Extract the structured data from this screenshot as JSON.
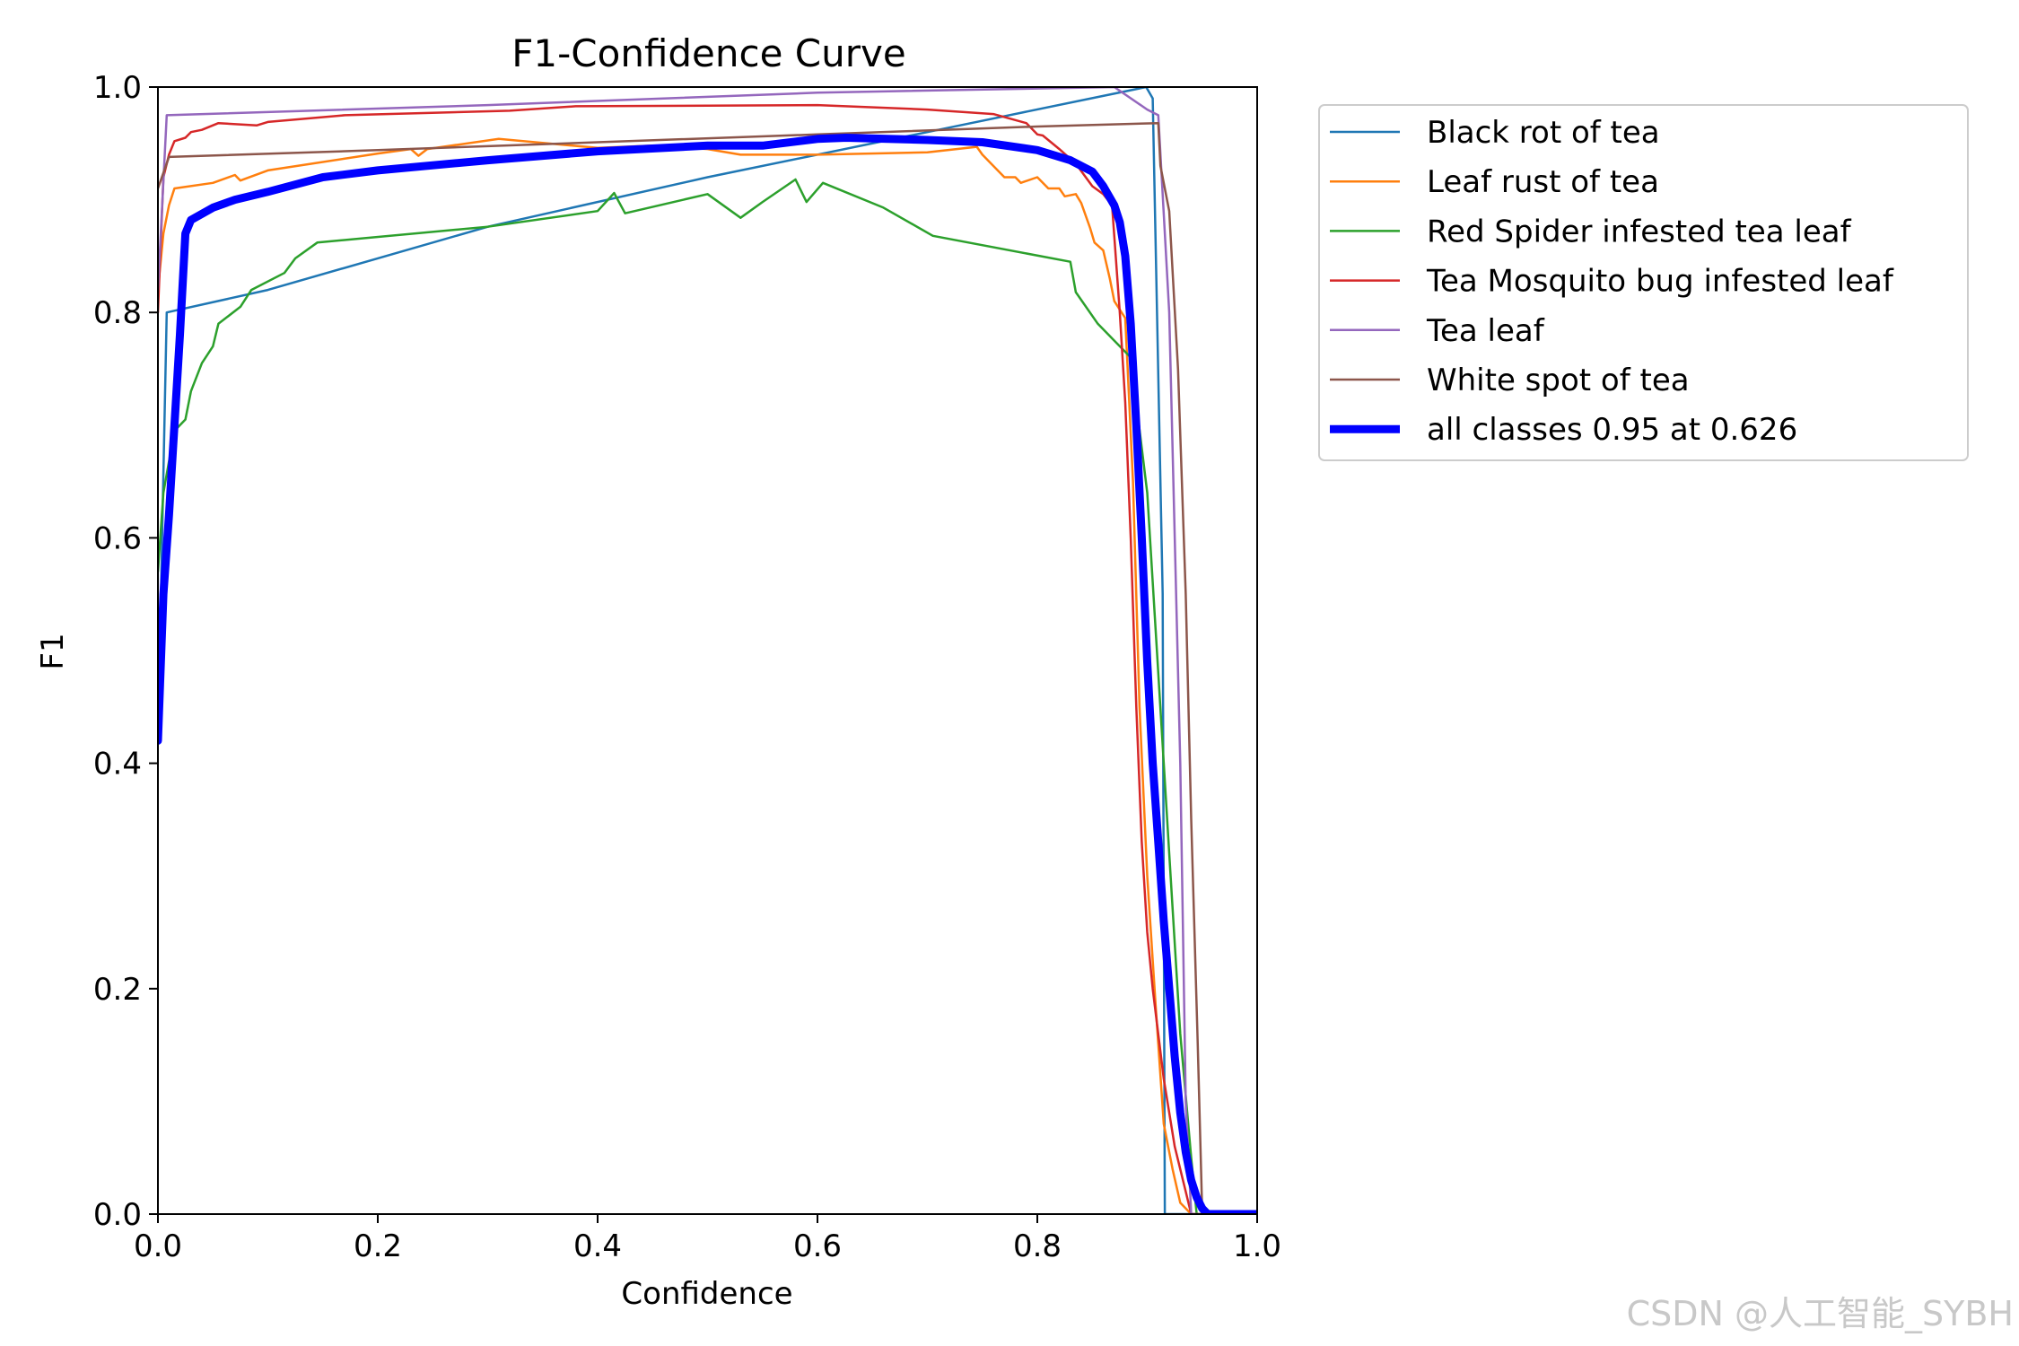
{
  "chart_data": {
    "type": "line",
    "title": "F1-Confidence Curve",
    "xlabel": "Confidence",
    "ylabel": "F1",
    "xlim": [
      0,
      1
    ],
    "ylim": [
      0,
      1
    ],
    "xticks": [
      "0.0",
      "0.2",
      "0.4",
      "0.6",
      "0.8",
      "1.0"
    ],
    "yticks": [
      "0.0",
      "0.2",
      "0.4",
      "0.6",
      "0.8",
      "1.0"
    ],
    "grid": false,
    "legend_position": "outside-right",
    "series": [
      {
        "name": "Black rot of tea",
        "color": "#1f77b4",
        "width": "thin",
        "points": [
          [
            0,
            0.42
          ],
          [
            0.008,
            0.8
          ],
          [
            0.1,
            0.82
          ],
          [
            0.3,
            0.876
          ],
          [
            0.5,
            0.92
          ],
          [
            0.7,
            0.96
          ],
          [
            0.899,
            1.0
          ],
          [
            0.905,
            0.99
          ],
          [
            0.914,
            0.55
          ],
          [
            0.916,
            0.0
          ],
          [
            1.0,
            0.0
          ]
        ]
      },
      {
        "name": "Leaf rust of tea",
        "color": "#ff7f0e",
        "width": "thin",
        "points": [
          [
            0,
            0.82
          ],
          [
            0.005,
            0.87
          ],
          [
            0.01,
            0.895
          ],
          [
            0.015,
            0.91
          ],
          [
            0.05,
            0.915
          ],
          [
            0.07,
            0.922
          ],
          [
            0.075,
            0.917
          ],
          [
            0.1,
            0.926
          ],
          [
            0.2,
            0.941
          ],
          [
            0.23,
            0.945
          ],
          [
            0.237,
            0.939
          ],
          [
            0.245,
            0.945
          ],
          [
            0.31,
            0.954
          ],
          [
            0.4,
            0.946
          ],
          [
            0.45,
            0.948
          ],
          [
            0.5,
            0.945
          ],
          [
            0.53,
            0.94
          ],
          [
            0.6,
            0.94
          ],
          [
            0.7,
            0.942
          ],
          [
            0.745,
            0.947
          ],
          [
            0.75,
            0.94
          ],
          [
            0.77,
            0.92
          ],
          [
            0.78,
            0.92
          ],
          [
            0.785,
            0.915
          ],
          [
            0.8,
            0.92
          ],
          [
            0.81,
            0.91
          ],
          [
            0.82,
            0.91
          ],
          [
            0.825,
            0.903
          ],
          [
            0.835,
            0.905
          ],
          [
            0.84,
            0.897
          ],
          [
            0.848,
            0.875
          ],
          [
            0.852,
            0.862
          ],
          [
            0.86,
            0.855
          ],
          [
            0.866,
            0.83
          ],
          [
            0.87,
            0.81
          ],
          [
            0.88,
            0.795
          ],
          [
            0.887,
            0.65
          ],
          [
            0.893,
            0.45
          ],
          [
            0.9,
            0.3
          ],
          [
            0.908,
            0.18
          ],
          [
            0.915,
            0.08
          ],
          [
            0.923,
            0.04
          ],
          [
            0.93,
            0.01
          ],
          [
            0.94,
            0.0
          ],
          [
            1.0,
            0.0
          ]
        ]
      },
      {
        "name": "Red Spider infested tea leaf",
        "color": "#2ca02c",
        "width": "thin",
        "points": [
          [
            0,
            0.57
          ],
          [
            0.005,
            0.64
          ],
          [
            0.015,
            0.695
          ],
          [
            0.025,
            0.705
          ],
          [
            0.03,
            0.73
          ],
          [
            0.04,
            0.755
          ],
          [
            0.05,
            0.77
          ],
          [
            0.055,
            0.79
          ],
          [
            0.075,
            0.805
          ],
          [
            0.085,
            0.82
          ],
          [
            0.115,
            0.835
          ],
          [
            0.125,
            0.848
          ],
          [
            0.145,
            0.862
          ],
          [
            0.3,
            0.876
          ],
          [
            0.4,
            0.89
          ],
          [
            0.415,
            0.906
          ],
          [
            0.425,
            0.888
          ],
          [
            0.5,
            0.905
          ],
          [
            0.53,
            0.884
          ],
          [
            0.55,
            0.898
          ],
          [
            0.58,
            0.918
          ],
          [
            0.59,
            0.898
          ],
          [
            0.605,
            0.915
          ],
          [
            0.66,
            0.893
          ],
          [
            0.705,
            0.868
          ],
          [
            0.83,
            0.845
          ],
          [
            0.835,
            0.818
          ],
          [
            0.855,
            0.79
          ],
          [
            0.885,
            0.76
          ],
          [
            0.9,
            0.64
          ],
          [
            0.91,
            0.48
          ],
          [
            0.92,
            0.32
          ],
          [
            0.93,
            0.16
          ],
          [
            0.94,
            0.05
          ],
          [
            0.945,
            0.0
          ],
          [
            1.0,
            0.0
          ]
        ]
      },
      {
        "name": "Tea Mosquito bug infested leaf",
        "color": "#d62728",
        "width": "thin",
        "points": [
          [
            0,
            0.8
          ],
          [
            0.005,
            0.92
          ],
          [
            0.01,
            0.94
          ],
          [
            0.015,
            0.952
          ],
          [
            0.025,
            0.955
          ],
          [
            0.03,
            0.96
          ],
          [
            0.04,
            0.962
          ],
          [
            0.055,
            0.968
          ],
          [
            0.09,
            0.966
          ],
          [
            0.1,
            0.969
          ],
          [
            0.17,
            0.975
          ],
          [
            0.32,
            0.979
          ],
          [
            0.38,
            0.983
          ],
          [
            0.6,
            0.984
          ],
          [
            0.7,
            0.98
          ],
          [
            0.76,
            0.976
          ],
          [
            0.79,
            0.968
          ],
          [
            0.8,
            0.958
          ],
          [
            0.805,
            0.957
          ],
          [
            0.82,
            0.945
          ],
          [
            0.835,
            0.932
          ],
          [
            0.85,
            0.912
          ],
          [
            0.86,
            0.905
          ],
          [
            0.868,
            0.895
          ],
          [
            0.875,
            0.8
          ],
          [
            0.88,
            0.72
          ],
          [
            0.885,
            0.6
          ],
          [
            0.89,
            0.45
          ],
          [
            0.895,
            0.33
          ],
          [
            0.9,
            0.25
          ],
          [
            0.905,
            0.2
          ],
          [
            0.915,
            0.12
          ],
          [
            0.925,
            0.06
          ],
          [
            0.935,
            0.02
          ],
          [
            0.94,
            0.0
          ],
          [
            1.0,
            0.0
          ]
        ]
      },
      {
        "name": "Tea leaf",
        "color": "#9467bd",
        "width": "thin",
        "points": [
          [
            0,
            0.82
          ],
          [
            0.008,
            0.975
          ],
          [
            0.3,
            0.984
          ],
          [
            0.6,
            0.995
          ],
          [
            0.87,
            1.0
          ],
          [
            0.9,
            0.98
          ],
          [
            0.91,
            0.975
          ],
          [
            0.92,
            0.8
          ],
          [
            0.93,
            0.4
          ],
          [
            0.935,
            0.1
          ],
          [
            0.94,
            0.0
          ],
          [
            1.0,
            0.0
          ]
        ]
      },
      {
        "name": "White spot of tea",
        "color": "#8c564b",
        "width": "thin",
        "points": [
          [
            0,
            0.91
          ],
          [
            0.01,
            0.938
          ],
          [
            0.2,
            0.944
          ],
          [
            0.4,
            0.951
          ],
          [
            0.6,
            0.958
          ],
          [
            0.8,
            0.965
          ],
          [
            0.91,
            0.968
          ],
          [
            0.912,
            0.93
          ],
          [
            0.92,
            0.89
          ],
          [
            0.928,
            0.75
          ],
          [
            0.935,
            0.55
          ],
          [
            0.94,
            0.35
          ],
          [
            0.946,
            0.15
          ],
          [
            0.95,
            0.0
          ],
          [
            1.0,
            0.0
          ]
        ]
      },
      {
        "name": "all classes 0.95 at 0.626",
        "color": "#0000ff",
        "width": "thick",
        "points": [
          [
            0,
            0.42
          ],
          [
            0.005,
            0.55
          ],
          [
            0.01,
            0.62
          ],
          [
            0.015,
            0.7
          ],
          [
            0.02,
            0.78
          ],
          [
            0.025,
            0.87
          ],
          [
            0.03,
            0.882
          ],
          [
            0.05,
            0.893
          ],
          [
            0.07,
            0.9
          ],
          [
            0.1,
            0.907
          ],
          [
            0.15,
            0.92
          ],
          [
            0.2,
            0.926
          ],
          [
            0.3,
            0.935
          ],
          [
            0.4,
            0.943
          ],
          [
            0.5,
            0.948
          ],
          [
            0.55,
            0.948
          ],
          [
            0.6,
            0.954
          ],
          [
            0.626,
            0.955
          ],
          [
            0.7,
            0.953
          ],
          [
            0.75,
            0.951
          ],
          [
            0.8,
            0.944
          ],
          [
            0.83,
            0.935
          ],
          [
            0.85,
            0.925
          ],
          [
            0.86,
            0.912
          ],
          [
            0.87,
            0.895
          ],
          [
            0.875,
            0.88
          ],
          [
            0.88,
            0.85
          ],
          [
            0.885,
            0.79
          ],
          [
            0.89,
            0.7
          ],
          [
            0.895,
            0.6
          ],
          [
            0.9,
            0.49
          ],
          [
            0.905,
            0.4
          ],
          [
            0.91,
            0.33
          ],
          [
            0.915,
            0.26
          ],
          [
            0.92,
            0.2
          ],
          [
            0.925,
            0.14
          ],
          [
            0.93,
            0.09
          ],
          [
            0.935,
            0.055
          ],
          [
            0.94,
            0.03
          ],
          [
            0.945,
            0.015
          ],
          [
            0.95,
            0.005
          ],
          [
            0.955,
            0.0
          ],
          [
            1.0,
            0.0
          ]
        ]
      }
    ]
  },
  "watermark": "CSDN @人工智能_SYBH"
}
